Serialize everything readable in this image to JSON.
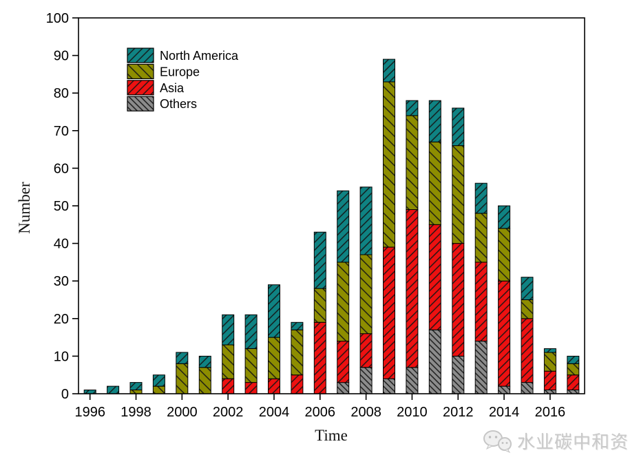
{
  "chart_data": {
    "type": "bar",
    "stacked": true,
    "title": "",
    "xlabel": "Time",
    "ylabel": "Number",
    "ylim": [
      0,
      100
    ],
    "y_tick_step": 10,
    "grid": false,
    "categories": [
      "1996",
      "1997",
      "1998",
      "1999",
      "2000",
      "2001",
      "2002",
      "2003",
      "2004",
      "2005",
      "2006",
      "2007",
      "2008",
      "2009",
      "2010",
      "2011",
      "2012",
      "2013",
      "2014",
      "2015",
      "2016",
      "2017"
    ],
    "x_tick_labels": [
      "1996",
      "1998",
      "2000",
      "2002",
      "2004",
      "2006",
      "2008",
      "2010",
      "2012",
      "2014",
      "2016"
    ],
    "series": [
      {
        "name": "Others",
        "color": "#8c8c8c",
        "hatch": "\\",
        "hatch_spacing": 6,
        "values": [
          0,
          0,
          0,
          0,
          0,
          0,
          0,
          0,
          0,
          0,
          0,
          3,
          7,
          4,
          7,
          17,
          10,
          14,
          2,
          3,
          1,
          1
        ]
      },
      {
        "name": "Asia",
        "color": "#ed1111",
        "hatch": "/",
        "hatch_spacing": 8,
        "values": [
          0,
          0,
          0,
          0,
          0,
          0,
          4,
          3,
          4,
          5,
          19,
          11,
          9,
          35,
          42,
          28,
          30,
          21,
          28,
          17,
          5,
          4
        ]
      },
      {
        "name": "Europe",
        "color": "#8d8d00",
        "hatch": "\\",
        "hatch_spacing": 10,
        "values": [
          0,
          0,
          1,
          2,
          8,
          7,
          9,
          9,
          11,
          12,
          9,
          21,
          21,
          44,
          25,
          22,
          26,
          13,
          14,
          5,
          5,
          3
        ]
      },
      {
        "name": "North America",
        "color": "#0f8383",
        "hatch": "/",
        "hatch_spacing": 8,
        "values": [
          1,
          2,
          2,
          3,
          3,
          3,
          8,
          9,
          14,
          2,
          15,
          19,
          18,
          6,
          4,
          11,
          10,
          8,
          6,
          6,
          1,
          2
        ]
      }
    ],
    "totals": [
      1,
      2,
      3,
      5,
      11,
      10,
      21,
      21,
      29,
      19,
      43,
      54,
      55,
      89,
      78,
      78,
      76,
      56,
      50,
      31,
      12,
      10
    ],
    "legend": {
      "position": "top-left",
      "entries": [
        "North America",
        "Europe",
        "Asia",
        "Others"
      ]
    },
    "axis_color": "#000000"
  },
  "watermark": {
    "text": "水业碳中和资",
    "icon": "wechat-logo"
  }
}
